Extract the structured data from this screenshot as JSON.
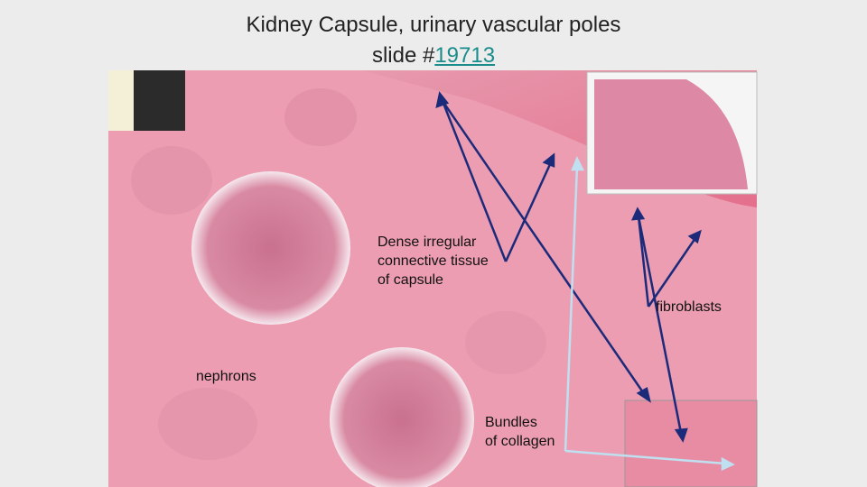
{
  "title": {
    "line1": "Kidney Capsule, urinary vascular poles",
    "line2": "slide  #",
    "link": "19713"
  },
  "labels": {
    "capsule": [
      "Dense irregular",
      "connective tissue",
      "of capsule"
    ],
    "fibroblasts": "fibroblasts",
    "nephrons": "nephrons",
    "collagen": [
      "Bundles",
      "of collagen"
    ]
  }
}
